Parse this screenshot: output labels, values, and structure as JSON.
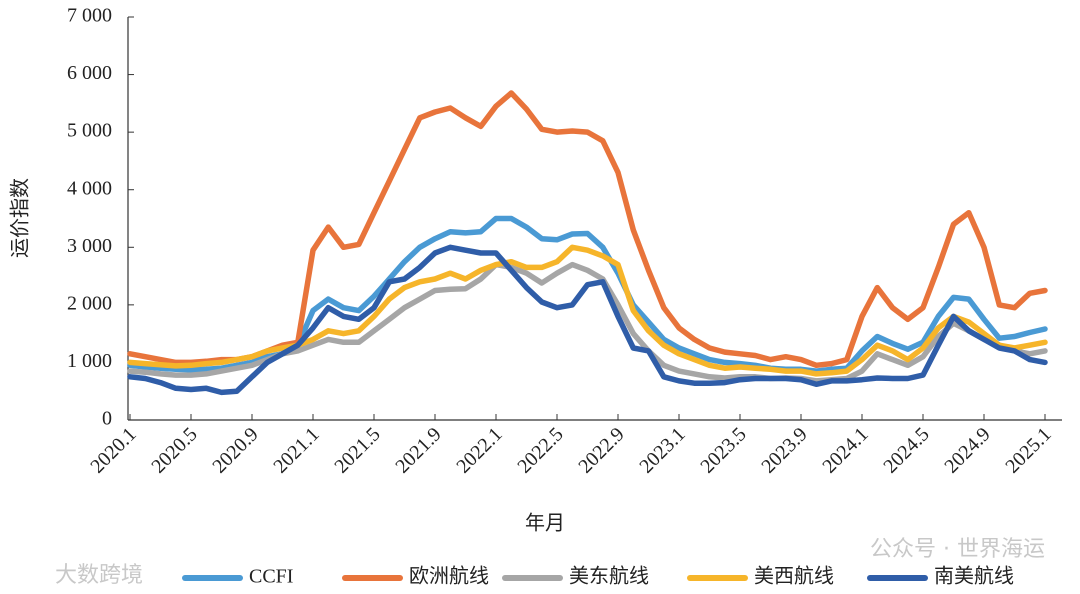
{
  "chart_data": {
    "type": "line",
    "y_label": "运价指数",
    "x_label": "年月",
    "categories": [
      "2020.1",
      null,
      null,
      null,
      "2020.5",
      null,
      null,
      null,
      "2020.9",
      null,
      null,
      null,
      "2021.1",
      null,
      null,
      null,
      "2021.5",
      null,
      null,
      null,
      "2021.9",
      null,
      null,
      null,
      "2022.1",
      null,
      null,
      null,
      "2022.5",
      null,
      null,
      null,
      "2022.9",
      null,
      null,
      null,
      "2023.1",
      null,
      null,
      null,
      "2023.5",
      null,
      null,
      null,
      "2023.9",
      null,
      null,
      null,
      "2024.1",
      null,
      null,
      null,
      "2024.5",
      null,
      null,
      null,
      "2024.9",
      null,
      null,
      null,
      "2025.1"
    ],
    "ylim": [
      0,
      7000
    ],
    "yticks": [
      0,
      {
        "value": 1000,
        "label": "1 000"
      },
      {
        "value": 2000,
        "label": "2 000"
      },
      {
        "value": 3000,
        "label": "3 000"
      },
      {
        "value": 4000,
        "label": "4 000"
      },
      {
        "value": 5000,
        "label": "5 000"
      },
      {
        "value": 6000,
        "label": "6 000"
      },
      {
        "value": 7000,
        "label": "7 000"
      }
    ],
    "series": [
      {
        "name": "CCFI",
        "color": "#4a9ad4",
        "values": [
          950,
          920,
          900,
          880,
          870,
          880,
          900,
          950,
          1000,
          1100,
          1150,
          1300,
          1900,
          2100,
          1950,
          1900,
          2150,
          2450,
          2750,
          3000,
          3150,
          3270,
          3250,
          3270,
          3500,
          3500,
          3350,
          3150,
          3130,
          3230,
          3240,
          3000,
          2550,
          2000,
          1700,
          1400,
          1250,
          1150,
          1050,
          1000,
          980,
          950,
          900,
          880,
          880,
          850,
          880,
          900,
          1200,
          1450,
          1330,
          1230,
          1350,
          1800,
          2130,
          2100,
          1750,
          1420,
          1450,
          1520,
          1580
        ]
      },
      {
        "name": "欧洲航线",
        "color": "#e8743b",
        "values": [
          1150,
          1100,
          1050,
          1000,
          1000,
          1020,
          1050,
          1050,
          1100,
          1200,
          1300,
          1350,
          2950,
          3350,
          3000,
          3050,
          3600,
          4150,
          4700,
          5250,
          5350,
          5420,
          5250,
          5100,
          5450,
          5680,
          5400,
          5050,
          5000,
          5020,
          5000,
          4850,
          4300,
          3300,
          2600,
          1950,
          1600,
          1400,
          1250,
          1180,
          1150,
          1120,
          1050,
          1100,
          1050,
          950,
          980,
          1050,
          1800,
          2300,
          1950,
          1750,
          1950,
          2650,
          3400,
          3600,
          3000,
          2000,
          1950,
          2200,
          2250
        ]
      },
      {
        "name": "美东航线",
        "color": "#a6a6a6",
        "values": [
          850,
          830,
          800,
          780,
          780,
          800,
          850,
          900,
          950,
          1050,
          1150,
          1200,
          1300,
          1400,
          1350,
          1350,
          1550,
          1750,
          1950,
          2100,
          2250,
          2270,
          2280,
          2450,
          2700,
          2650,
          2550,
          2380,
          2550,
          2700,
          2600,
          2450,
          2000,
          1500,
          1200,
          950,
          850,
          800,
          750,
          730,
          750,
          750,
          720,
          730,
          720,
          680,
          700,
          720,
          850,
          1150,
          1050,
          950,
          1100,
          1450,
          1680,
          1550,
          1400,
          1300,
          1200,
          1150,
          1200
        ]
      },
      {
        "name": "美西航线",
        "color": "#f6b52a",
        "values": [
          1000,
          980,
          960,
          940,
          950,
          980,
          1000,
          1050,
          1100,
          1200,
          1250,
          1300,
          1400,
          1550,
          1500,
          1550,
          1800,
          2100,
          2300,
          2400,
          2450,
          2550,
          2450,
          2600,
          2700,
          2750,
          2650,
          2650,
          2750,
          3000,
          2950,
          2850,
          2700,
          1900,
          1550,
          1300,
          1150,
          1050,
          950,
          900,
          920,
          900,
          880,
          850,
          850,
          800,
          820,
          850,
          1050,
          1300,
          1200,
          1050,
          1250,
          1600,
          1800,
          1700,
          1500,
          1300,
          1250,
          1300,
          1350
        ]
      },
      {
        "name": "南美航线",
        "color": "#2f5da8",
        "values": [
          750,
          720,
          650,
          550,
          530,
          550,
          480,
          500,
          750,
          1000,
          1150,
          1300,
          1600,
          1950,
          1800,
          1750,
          1950,
          2400,
          2450,
          2650,
          2900,
          3000,
          2950,
          2900,
          2900,
          2600,
          2300,
          2050,
          1950,
          2000,
          2350,
          2400,
          1800,
          1250,
          1200,
          750,
          680,
          640,
          640,
          650,
          700,
          720,
          720,
          720,
          700,
          620,
          680,
          680,
          700,
          730,
          720,
          720,
          780,
          1300,
          1800,
          1550,
          1400,
          1250,
          1200,
          1050,
          1000
        ]
      }
    ]
  },
  "watermarks": [
    "公众号 · 世界海运",
    "大数跨境"
  ]
}
